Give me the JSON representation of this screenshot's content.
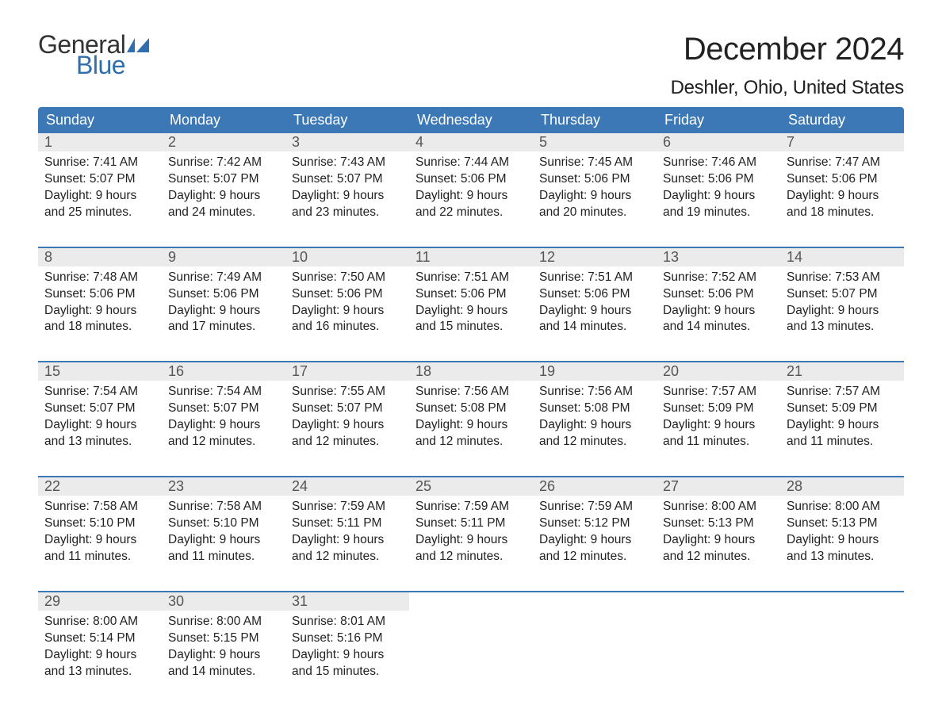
{
  "logo": {
    "text1": "General",
    "text2": "Blue",
    "flag_color": "#2f6fad"
  },
  "title": "December 2024",
  "location": "Deshler, Ohio, United States",
  "colors": {
    "header_bg": "#3b78b5",
    "header_text": "#ffffff",
    "daynum_bg": "#ebebeb",
    "daynum_text": "#555555",
    "rule": "#3b78b5",
    "body_text": "#222222",
    "page_bg": "#ffffff"
  },
  "typography": {
    "title_fontsize": 40,
    "location_fontsize": 24,
    "dow_fontsize": 18,
    "daynum_fontsize": 18,
    "body_fontsize": 15.5
  },
  "days_of_week": [
    "Sunday",
    "Monday",
    "Tuesday",
    "Wednesday",
    "Thursday",
    "Friday",
    "Saturday"
  ],
  "labels": {
    "sunrise": "Sunrise",
    "sunset": "Sunset",
    "daylight": "Daylight"
  },
  "weeks": [
    [
      {
        "n": "1",
        "sunrise": "7:41 AM",
        "sunset": "5:07 PM",
        "daylight": "9 hours and 25 minutes."
      },
      {
        "n": "2",
        "sunrise": "7:42 AM",
        "sunset": "5:07 PM",
        "daylight": "9 hours and 24 minutes."
      },
      {
        "n": "3",
        "sunrise": "7:43 AM",
        "sunset": "5:07 PM",
        "daylight": "9 hours and 23 minutes."
      },
      {
        "n": "4",
        "sunrise": "7:44 AM",
        "sunset": "5:06 PM",
        "daylight": "9 hours and 22 minutes."
      },
      {
        "n": "5",
        "sunrise": "7:45 AM",
        "sunset": "5:06 PM",
        "daylight": "9 hours and 20 minutes."
      },
      {
        "n": "6",
        "sunrise": "7:46 AM",
        "sunset": "5:06 PM",
        "daylight": "9 hours and 19 minutes."
      },
      {
        "n": "7",
        "sunrise": "7:47 AM",
        "sunset": "5:06 PM",
        "daylight": "9 hours and 18 minutes."
      }
    ],
    [
      {
        "n": "8",
        "sunrise": "7:48 AM",
        "sunset": "5:06 PM",
        "daylight": "9 hours and 18 minutes."
      },
      {
        "n": "9",
        "sunrise": "7:49 AM",
        "sunset": "5:06 PM",
        "daylight": "9 hours and 17 minutes."
      },
      {
        "n": "10",
        "sunrise": "7:50 AM",
        "sunset": "5:06 PM",
        "daylight": "9 hours and 16 minutes."
      },
      {
        "n": "11",
        "sunrise": "7:51 AM",
        "sunset": "5:06 PM",
        "daylight": "9 hours and 15 minutes."
      },
      {
        "n": "12",
        "sunrise": "7:51 AM",
        "sunset": "5:06 PM",
        "daylight": "9 hours and 14 minutes."
      },
      {
        "n": "13",
        "sunrise": "7:52 AM",
        "sunset": "5:06 PM",
        "daylight": "9 hours and 14 minutes."
      },
      {
        "n": "14",
        "sunrise": "7:53 AM",
        "sunset": "5:07 PM",
        "daylight": "9 hours and 13 minutes."
      }
    ],
    [
      {
        "n": "15",
        "sunrise": "7:54 AM",
        "sunset": "5:07 PM",
        "daylight": "9 hours and 13 minutes."
      },
      {
        "n": "16",
        "sunrise": "7:54 AM",
        "sunset": "5:07 PM",
        "daylight": "9 hours and 12 minutes."
      },
      {
        "n": "17",
        "sunrise": "7:55 AM",
        "sunset": "5:07 PM",
        "daylight": "9 hours and 12 minutes."
      },
      {
        "n": "18",
        "sunrise": "7:56 AM",
        "sunset": "5:08 PM",
        "daylight": "9 hours and 12 minutes."
      },
      {
        "n": "19",
        "sunrise": "7:56 AM",
        "sunset": "5:08 PM",
        "daylight": "9 hours and 12 minutes."
      },
      {
        "n": "20",
        "sunrise": "7:57 AM",
        "sunset": "5:09 PM",
        "daylight": "9 hours and 11 minutes."
      },
      {
        "n": "21",
        "sunrise": "7:57 AM",
        "sunset": "5:09 PM",
        "daylight": "9 hours and 11 minutes."
      }
    ],
    [
      {
        "n": "22",
        "sunrise": "7:58 AM",
        "sunset": "5:10 PM",
        "daylight": "9 hours and 11 minutes."
      },
      {
        "n": "23",
        "sunrise": "7:58 AM",
        "sunset": "5:10 PM",
        "daylight": "9 hours and 11 minutes."
      },
      {
        "n": "24",
        "sunrise": "7:59 AM",
        "sunset": "5:11 PM",
        "daylight": "9 hours and 12 minutes."
      },
      {
        "n": "25",
        "sunrise": "7:59 AM",
        "sunset": "5:11 PM",
        "daylight": "9 hours and 12 minutes."
      },
      {
        "n": "26",
        "sunrise": "7:59 AM",
        "sunset": "5:12 PM",
        "daylight": "9 hours and 12 minutes."
      },
      {
        "n": "27",
        "sunrise": "8:00 AM",
        "sunset": "5:13 PM",
        "daylight": "9 hours and 12 minutes."
      },
      {
        "n": "28",
        "sunrise": "8:00 AM",
        "sunset": "5:13 PM",
        "daylight": "9 hours and 13 minutes."
      }
    ],
    [
      {
        "n": "29",
        "sunrise": "8:00 AM",
        "sunset": "5:14 PM",
        "daylight": "9 hours and 13 minutes."
      },
      {
        "n": "30",
        "sunrise": "8:00 AM",
        "sunset": "5:15 PM",
        "daylight": "9 hours and 14 minutes."
      },
      {
        "n": "31",
        "sunrise": "8:01 AM",
        "sunset": "5:16 PM",
        "daylight": "9 hours and 15 minutes."
      },
      null,
      null,
      null,
      null
    ]
  ]
}
